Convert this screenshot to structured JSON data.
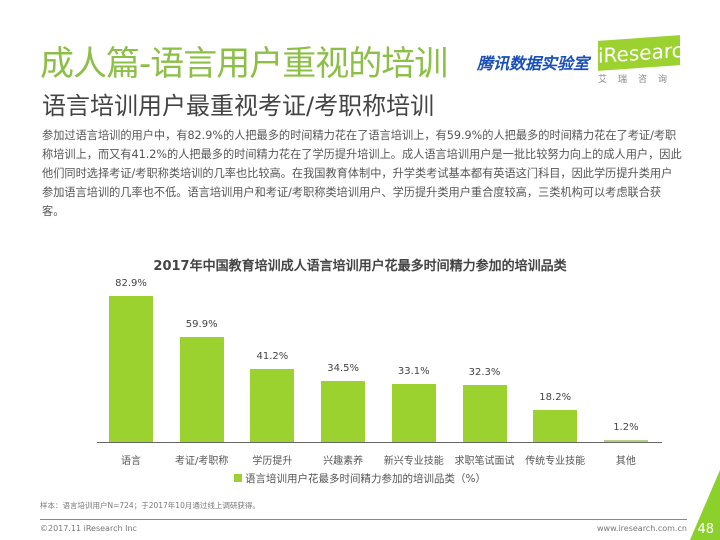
{
  "header": {
    "title": "成人篇-语言用户重视的培训",
    "subtitle": "语言培训用户最重视考证/考职称培训",
    "logo_tencent": "腾讯数据实验室",
    "logo_iresearch": "iResearch",
    "logo_iresearch_cn": "艾瑞咨询"
  },
  "body": "参加过语言培训的用户中，有82.9%的人把最多的时间精力花在了语言培训上，有59.9%的人把最多的时间精力花在了考证/考职称培训上，而又有41.2%的人把最多的时间精力花在了学历提升培训上。成人语言培训用户是一批比较努力向上的成人用户，因此他们同时选择考证/考职称类培训的几率也比较高。在我国教育体制中，升学类考试基本都有英语这门科目，因此学历提升类用户参加语言培训的几率也不低。语言培训用户和考证/考职称类培训用户、学历提升类用户重合度较高，三类机构可以考虑联合获客。",
  "chart_data": {
    "type": "bar",
    "title": "2017年中国教育培训成人语言培训用户花最多时间精力参加的培训品类",
    "categories": [
      "语言",
      "考证/考职称",
      "学历提升",
      "兴趣素养",
      "新兴专业技能",
      "求职笔试面试",
      "传统专业技能",
      "其他"
    ],
    "series": [
      {
        "name": "语言培训用户花最多时间精力参加的培训品类（%）",
        "values": [
          82.9,
          59.9,
          41.2,
          34.5,
          33.1,
          32.3,
          18.2,
          1.2
        ]
      }
    ],
    "value_labels": [
      "82.9%",
      "59.9%",
      "41.2%",
      "34.5%",
      "33.1%",
      "32.3%",
      "18.2%",
      "1.2%"
    ],
    "ylim": [
      0,
      90
    ],
    "grid": false,
    "legend": "bottom",
    "colors": {
      "bar": "#9bd22f",
      "other_bar": "#b5cf8a"
    }
  },
  "footer": {
    "sample": "样本：语言培训用户N=724；于2017年10月通过线上调研获得。",
    "copyright": "©2017.11 iResearch Inc",
    "url": "www.iresearch.com.cn",
    "page": "48"
  }
}
